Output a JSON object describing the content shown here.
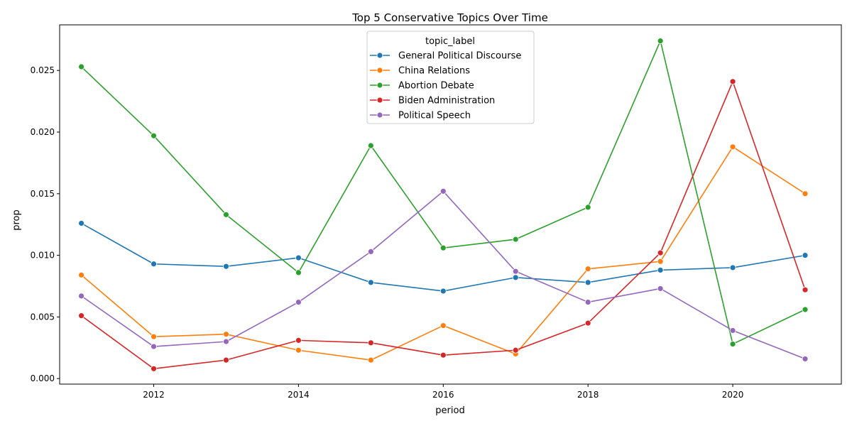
{
  "chart_data": {
    "type": "line",
    "title": "Top 5 Conservative Topics Over Time",
    "xlabel": "period",
    "ylabel": "prop",
    "xlim": [
      2010.7,
      2021.5
    ],
    "ylim": [
      -0.00045,
      0.0287
    ],
    "x_ticks": [
      2012,
      2014,
      2016,
      2018,
      2020
    ],
    "y_ticks": [
      0.0,
      0.005,
      0.01,
      0.015,
      0.02,
      0.025
    ],
    "y_tick_labels": [
      "0.000",
      "0.005",
      "0.010",
      "0.015",
      "0.020",
      "0.025"
    ],
    "legend": {
      "title": "topic_label",
      "placement": "top-center"
    },
    "x": [
      2011,
      2012,
      2013,
      2014,
      2015,
      2016,
      2017,
      2018,
      2019,
      2020,
      2021
    ],
    "series": [
      {
        "name": "General Political Discourse",
        "color": "#1f77b4",
        "values": [
          0.0126,
          0.0093,
          0.0091,
          0.0098,
          0.0078,
          0.0071,
          0.0082,
          0.0078,
          0.0088,
          0.009,
          0.01
        ]
      },
      {
        "name": "China Relations",
        "color": "#ff7f0e",
        "values": [
          0.0084,
          0.0034,
          0.0036,
          0.0023,
          0.0015,
          0.0043,
          0.002,
          0.0089,
          0.0095,
          0.0188,
          0.015
        ]
      },
      {
        "name": "Abortion Debate",
        "color": "#2ca02c",
        "values": [
          0.0253,
          0.0197,
          0.0133,
          0.0086,
          0.0189,
          0.0106,
          0.0113,
          0.0139,
          0.0274,
          0.0028,
          0.0056
        ]
      },
      {
        "name": "Biden Administration",
        "color": "#d62728",
        "values": [
          0.0051,
          0.0008,
          0.0015,
          0.0031,
          0.0029,
          0.0019,
          0.0023,
          0.0045,
          0.0102,
          0.0241,
          0.0072
        ]
      },
      {
        "name": "Political Speech",
        "color": "#9467bd",
        "values": [
          0.0067,
          0.0026,
          0.003,
          0.0062,
          0.0103,
          0.0152,
          0.0087,
          0.0062,
          0.0073,
          0.0039,
          0.0016
        ]
      }
    ]
  }
}
